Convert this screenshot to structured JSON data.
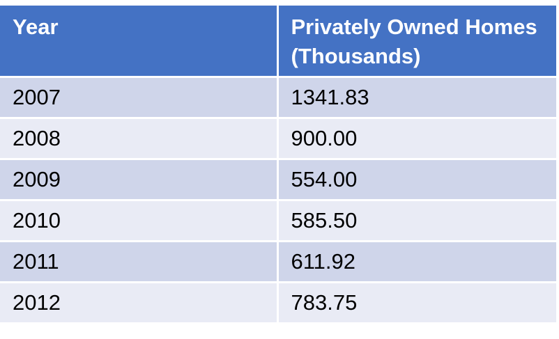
{
  "chart_data": {
    "type": "table",
    "columns": [
      "Year",
      "Privately Owned Homes (Thousands)"
    ],
    "rows": [
      [
        "2007",
        "1341.83"
      ],
      [
        "2008",
        "900.00"
      ],
      [
        "2009",
        "554.00"
      ],
      [
        "2010",
        "585.50"
      ],
      [
        "2011",
        "611.92"
      ],
      [
        "2012",
        "783.75"
      ]
    ],
    "x": [
      2007,
      2008,
      2009,
      2010,
      2011,
      2012
    ],
    "values": [
      1341.83,
      900.0,
      554.0,
      585.5,
      611.92,
      783.75
    ]
  },
  "colors": {
    "header_bg": "#4472c4",
    "band_dark": "#cfd5ea",
    "band_light": "#e9ebf5"
  }
}
